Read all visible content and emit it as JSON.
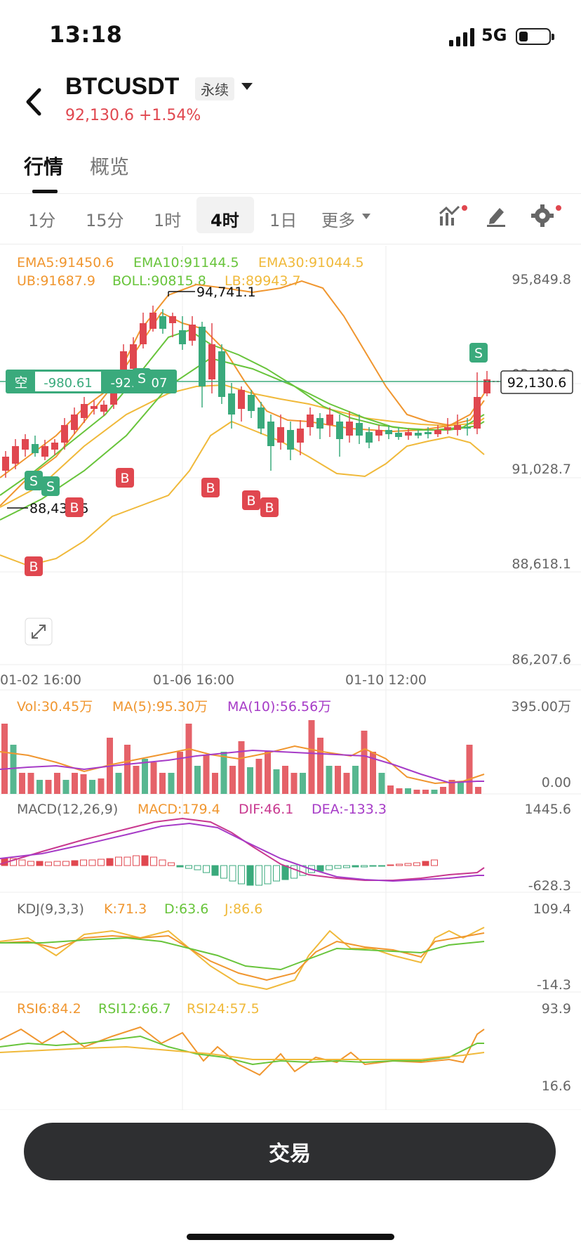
{
  "status_bar": {
    "time": "13:18",
    "network": "5G"
  },
  "header": {
    "symbol": "BTCUSDT",
    "contract_type": "永续",
    "price_line": "92,130.6 +1.54%"
  },
  "tabs": [
    {
      "label": "行情",
      "active": true
    },
    {
      "label": "概览",
      "active": false
    }
  ],
  "intervals": [
    {
      "label": "1分",
      "selected": false
    },
    {
      "label": "15分",
      "selected": false
    },
    {
      "label": "1时",
      "selected": false
    },
    {
      "label": "4时",
      "selected": true
    },
    {
      "label": "1日",
      "selected": false
    },
    {
      "label": "更多",
      "selected": false
    }
  ],
  "tools": [
    "indicator-icon",
    "draw-pen-icon",
    "gear-icon"
  ],
  "colors": {
    "up": "#e0474f",
    "down": "#3aaa7c",
    "ema5": "#f0962f",
    "ema10": "#68c43b",
    "ema30": "#f0b93a",
    "purple": "#a63bc7",
    "magenta": "#c8388f"
  },
  "main": {
    "ema_labels": [
      "EMA5:91450.6",
      "EMA10:91144.5",
      "EMA30:91044.5"
    ],
    "boll_labels": [
      "UB:91687.9",
      "BOLL:90815.8",
      "LB:89943.7"
    ],
    "y_axis": [
      "95,849.8",
      "93,439.2",
      "91,028.7",
      "88,618.1",
      "86,207.6"
    ],
    "x_axis": [
      "01-02 16:00",
      "01-06 16:00",
      "01-10 12:00"
    ],
    "high_label": "94,741.1",
    "low_label": "88,434.5",
    "current_price": "92,130.6",
    "position": {
      "side": "空",
      "pnl": "-980.61",
      "pnl_pct": "-92.5107"
    },
    "markers": [
      "S",
      "S",
      "S",
      "S",
      "B",
      "B",
      "B",
      "B",
      "B",
      "B"
    ]
  },
  "volume": {
    "labels": [
      "Vol:30.45万",
      "MA(5):95.30万",
      "MA(10):56.56万"
    ],
    "y_axis": [
      "395.00万",
      "0.00"
    ]
  },
  "macd": {
    "labels": [
      "MACD(12,26,9)",
      "MACD:179.4",
      "DIF:46.1",
      "DEA:-133.3"
    ],
    "y_axis": [
      "1445.6",
      "-628.3"
    ]
  },
  "kdj": {
    "labels": [
      "KDJ(9,3,3)",
      "K:71.3",
      "D:63.6",
      "J:86.6"
    ],
    "y_axis": [
      "109.4",
      "-14.3"
    ]
  },
  "rsi": {
    "labels": [
      "RSI6:84.2",
      "RSI12:66.7",
      "RSI24:57.5"
    ],
    "y_axis": [
      "93.9",
      "16.6"
    ]
  },
  "trade_button": "交易"
}
